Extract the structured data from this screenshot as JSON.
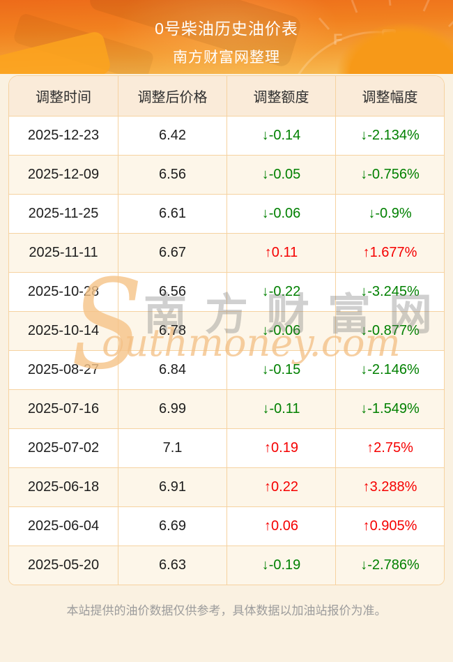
{
  "header": {
    "title": "0号柴油历史油价表",
    "subtitle": "南方财富网整理"
  },
  "table": {
    "columns": [
      "调整时间",
      "调整后价格",
      "调整额度",
      "调整幅度"
    ],
    "rows": [
      {
        "date": "2025-12-23",
        "price": "6.42",
        "change": "↓-0.14",
        "percent": "↓-2.134%",
        "trend": "down"
      },
      {
        "date": "2025-12-09",
        "price": "6.56",
        "change": "↓-0.05",
        "percent": "↓-0.756%",
        "trend": "down"
      },
      {
        "date": "2025-11-25",
        "price": "6.61",
        "change": "↓-0.06",
        "percent": "↓-0.9%",
        "trend": "down"
      },
      {
        "date": "2025-11-11",
        "price": "6.67",
        "change": "↑0.11",
        "percent": "↑1.677%",
        "trend": "up"
      },
      {
        "date": "2025-10-28",
        "price": "6.56",
        "change": "↓-0.22",
        "percent": "↓-3.245%",
        "trend": "down"
      },
      {
        "date": "2025-10-14",
        "price": "6.78",
        "change": "↓-0.06",
        "percent": "↓-0.877%",
        "trend": "down"
      },
      {
        "date": "2025-08-27",
        "price": "6.84",
        "change": "↓-0.15",
        "percent": "↓-2.146%",
        "trend": "down"
      },
      {
        "date": "2025-07-16",
        "price": "6.99",
        "change": "↓-0.11",
        "percent": "↓-1.549%",
        "trend": "down"
      },
      {
        "date": "2025-07-02",
        "price": "7.1",
        "change": "↑0.19",
        "percent": "↑2.75%",
        "trend": "up"
      },
      {
        "date": "2025-06-18",
        "price": "6.91",
        "change": "↑0.22",
        "percent": "↑3.288%",
        "trend": "up"
      },
      {
        "date": "2025-06-04",
        "price": "6.69",
        "change": "↑0.06",
        "percent": "↑0.905%",
        "trend": "up"
      },
      {
        "date": "2025-05-20",
        "price": "6.63",
        "change": "↓-0.19",
        "percent": "↓-2.786%",
        "trend": "down"
      }
    ]
  },
  "watermark": {
    "s_letter": "S",
    "cn": "南方财富网",
    "en": "outhmoney.com"
  },
  "footer": {
    "disclaimer": "本站提供的油价数据仅供参考，具体数据以加油站报价为准。"
  },
  "colors": {
    "up_red": "#f50000",
    "down_green": "#008000",
    "banner_orange_top": "#ed6b1a",
    "banner_orange_bottom": "#f7bd55",
    "table_border": "#f6d2a0",
    "header_row_bg": "#faebd9",
    "alt_row_bg": "#fdf6e9",
    "page_bg": "#faf1e1"
  },
  "chart_data": {
    "type": "table",
    "title": "0号柴油历史油价表",
    "subtitle": "南方财富网整理",
    "columns": [
      "调整时间",
      "调整后价格",
      "调整额度",
      "调整幅度"
    ],
    "rows": [
      [
        "2025-12-23",
        6.42,
        -0.14,
        "-2.134%"
      ],
      [
        "2025-12-09",
        6.56,
        -0.05,
        "-0.756%"
      ],
      [
        "2025-11-25",
        6.61,
        -0.06,
        "-0.9%"
      ],
      [
        "2025-11-11",
        6.67,
        0.11,
        "+1.677%"
      ],
      [
        "2025-10-28",
        6.56,
        -0.22,
        "-3.245%"
      ],
      [
        "2025-10-14",
        6.78,
        -0.06,
        "-0.877%"
      ],
      [
        "2025-08-27",
        6.84,
        -0.15,
        "-2.146%"
      ],
      [
        "2025-07-16",
        6.99,
        -0.11,
        "-1.549%"
      ],
      [
        "2025-07-02",
        7.1,
        0.19,
        "+2.75%"
      ],
      [
        "2025-06-18",
        6.91,
        0.22,
        "+3.288%"
      ],
      [
        "2025-06-04",
        6.69,
        0.06,
        "+0.905%"
      ],
      [
        "2025-05-20",
        6.63,
        -0.19,
        "-2.786%"
      ]
    ]
  }
}
